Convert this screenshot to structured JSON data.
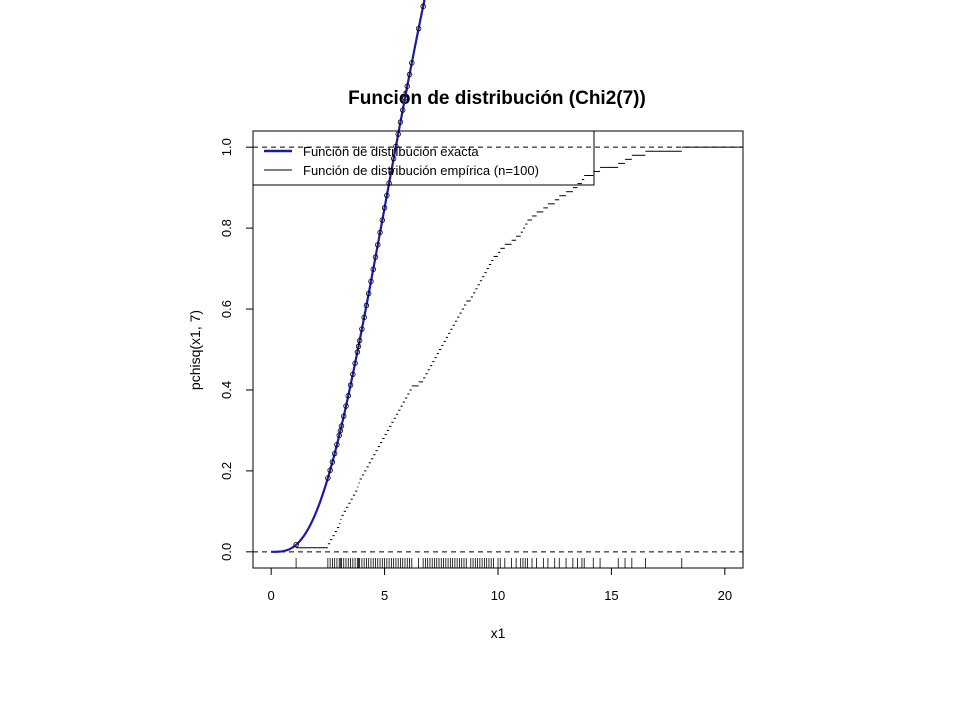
{
  "chart_data": {
    "type": "line",
    "title": "Función de distribución (Chi2(7))",
    "xlabel": "x1",
    "ylabel": "pchisq(x1, 7)",
    "xlim": [
      -0.8,
      20.8
    ],
    "ylim": [
      -0.04,
      1.04
    ],
    "x_ticks": [
      0,
      5,
      10,
      15,
      20
    ],
    "y_ticks": [
      0.0,
      0.2,
      0.4,
      0.6,
      0.8,
      1.0
    ],
    "x_tick_labels": [
      "0",
      "5",
      "10",
      "15",
      "20"
    ],
    "y_tick_labels": [
      "0.0",
      "0.2",
      "0.4",
      "0.6",
      "0.8",
      "1.0"
    ],
    "reference_lines_y": [
      0,
      1
    ],
    "legend": {
      "placement": "top-left",
      "entries": [
        {
          "label": "Función de distribución exacta",
          "color": "#1a1aa6",
          "style": "thick-line"
        },
        {
          "label": "Función de distribución empírica (n=100)",
          "color": "#000000",
          "style": "thin-line"
        }
      ]
    },
    "series": [
      {
        "name": "Función de distribución exacta",
        "kind": "theoretical-cdf",
        "degrees_of_freedom": 7,
        "x_range": [
          0,
          20
        ],
        "color": "#1a1aa6"
      },
      {
        "name": "Función de distribución empírica (n=100)",
        "kind": "ecdf-step",
        "color": "#000000",
        "sample": [
          1.1,
          2.5,
          2.6,
          2.7,
          2.8,
          2.9,
          3.0,
          3.05,
          3.1,
          3.2,
          3.3,
          3.4,
          3.5,
          3.6,
          3.7,
          3.8,
          3.85,
          3.9,
          4.0,
          4.1,
          4.2,
          4.3,
          4.4,
          4.5,
          4.6,
          4.7,
          4.8,
          4.9,
          5.0,
          5.1,
          5.2,
          5.3,
          5.4,
          5.5,
          5.6,
          5.7,
          5.8,
          5.9,
          6.0,
          6.1,
          6.2,
          6.5,
          6.7,
          6.8,
          6.9,
          7.0,
          7.1,
          7.2,
          7.3,
          7.4,
          7.5,
          7.6,
          7.7,
          7.8,
          7.9,
          8.0,
          8.1,
          8.2,
          8.3,
          8.4,
          8.5,
          8.6,
          8.8,
          8.9,
          9.0,
          9.1,
          9.2,
          9.3,
          9.4,
          9.5,
          9.6,
          9.7,
          9.8,
          10.0,
          10.1,
          10.3,
          10.6,
          10.8,
          11.0,
          11.1,
          11.2,
          11.3,
          11.5,
          11.7,
          12.0,
          12.2,
          12.5,
          12.7,
          13.0,
          13.3,
          13.5,
          13.7,
          13.8,
          14.2,
          14.5,
          15.3,
          15.6,
          15.9,
          16.5,
          18.1
        ]
      }
    ]
  }
}
